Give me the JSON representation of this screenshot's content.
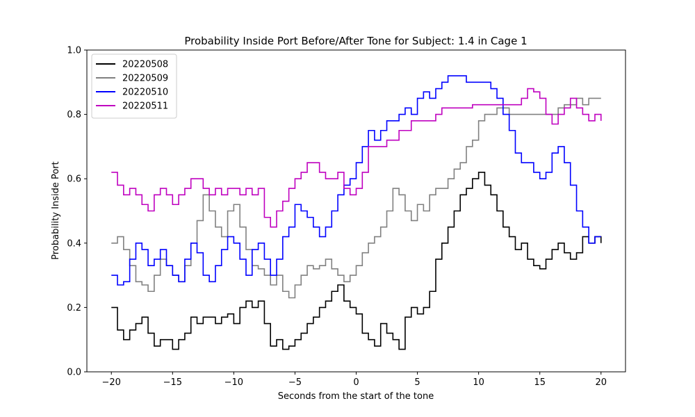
{
  "chart_data": {
    "type": "line",
    "title": "Probability Inside Port Before/After Tone for Subject: 1.4 in Cage 1",
    "xlabel": "Seconds from the start of the tone",
    "ylabel": "Probability Inside Port",
    "xlim": [
      -22,
      22
    ],
    "ylim": [
      0.0,
      1.0
    ],
    "xticks": [
      -20,
      -15,
      -10,
      -5,
      0,
      5,
      10,
      15,
      20
    ],
    "xtick_labels": [
      "−20",
      "−15",
      "−10",
      "−5",
      "0",
      "5",
      "10",
      "15",
      "20"
    ],
    "yticks": [
      0.0,
      0.2,
      0.4,
      0.6,
      0.8,
      1.0
    ],
    "ytick_labels": [
      "0.0",
      "0.2",
      "0.4",
      "0.6",
      "0.8",
      "1.0"
    ],
    "grid": false,
    "legend_position": "top-left",
    "series": [
      {
        "name": "20220508",
        "color": "#000000",
        "x": [
          -20,
          -19.5,
          -19,
          -18.5,
          -18,
          -17.5,
          -17,
          -16.5,
          -16,
          -15.5,
          -15,
          -14.5,
          -14,
          -13.5,
          -13,
          -12.5,
          -12,
          -11.5,
          -11,
          -10.5,
          -10,
          -9.5,
          -9,
          -8.5,
          -8,
          -7.5,
          -7,
          -6.5,
          -6,
          -5.5,
          -5,
          -4.5,
          -4,
          -3.5,
          -3,
          -2.5,
          -2,
          -1.5,
          -1,
          -0.5,
          0,
          0.5,
          1,
          1.5,
          2,
          2.5,
          3,
          3.5,
          4,
          4.5,
          5,
          5.5,
          6,
          6.5,
          7,
          7.5,
          8,
          8.5,
          9,
          9.5,
          10,
          10.5,
          11,
          11.5,
          12,
          12.5,
          13,
          13.5,
          14,
          14.5,
          15,
          15.5,
          16,
          16.5,
          17,
          17.5,
          18,
          18.5,
          19,
          19.5,
          20
        ],
        "values": [
          0.2,
          0.13,
          0.1,
          0.13,
          0.15,
          0.17,
          0.12,
          0.08,
          0.1,
          0.1,
          0.07,
          0.1,
          0.12,
          0.17,
          0.15,
          0.17,
          0.17,
          0.15,
          0.17,
          0.18,
          0.15,
          0.2,
          0.22,
          0.2,
          0.22,
          0.15,
          0.08,
          0.1,
          0.07,
          0.08,
          0.1,
          0.12,
          0.15,
          0.17,
          0.2,
          0.22,
          0.25,
          0.27,
          0.22,
          0.2,
          0.18,
          0.12,
          0.1,
          0.08,
          0.15,
          0.12,
          0.1,
          0.07,
          0.17,
          0.2,
          0.18,
          0.2,
          0.25,
          0.35,
          0.4,
          0.45,
          0.5,
          0.55,
          0.57,
          0.6,
          0.62,
          0.58,
          0.55,
          0.5,
          0.45,
          0.42,
          0.38,
          0.4,
          0.35,
          0.33,
          0.32,
          0.35,
          0.38,
          0.4,
          0.37,
          0.35,
          0.37,
          0.42,
          0.4,
          0.42,
          0.4
        ]
      },
      {
        "name": "20220509",
        "color": "#808080",
        "x": [
          -20,
          -19.5,
          -19,
          -18.5,
          -18,
          -17.5,
          -17,
          -16.5,
          -16,
          -15.5,
          -15,
          -14.5,
          -14,
          -13.5,
          -13,
          -12.5,
          -12,
          -11.5,
          -11,
          -10.5,
          -10,
          -9.5,
          -9,
          -8.5,
          -8,
          -7.5,
          -7,
          -6.5,
          -6,
          -5.5,
          -5,
          -4.5,
          -4,
          -3.5,
          -3,
          -2.5,
          -2,
          -1.5,
          -1,
          -0.5,
          0,
          0.5,
          1,
          1.5,
          2,
          2.5,
          3,
          3.5,
          4,
          4.5,
          5,
          5.5,
          6,
          6.5,
          7,
          7.5,
          8,
          8.5,
          9,
          9.5,
          10,
          10.5,
          11,
          11.5,
          12,
          12.5,
          13,
          13.5,
          14,
          14.5,
          15,
          15.5,
          16,
          16.5,
          17,
          17.5,
          18,
          18.5,
          19,
          19.5,
          20
        ],
        "values": [
          0.4,
          0.42,
          0.38,
          0.33,
          0.28,
          0.27,
          0.25,
          0.3,
          0.35,
          0.33,
          0.3,
          0.28,
          0.33,
          0.4,
          0.47,
          0.55,
          0.5,
          0.45,
          0.42,
          0.5,
          0.52,
          0.45,
          0.38,
          0.33,
          0.32,
          0.3,
          0.27,
          0.3,
          0.25,
          0.23,
          0.27,
          0.3,
          0.33,
          0.32,
          0.33,
          0.35,
          0.32,
          0.3,
          0.28,
          0.3,
          0.33,
          0.37,
          0.4,
          0.42,
          0.45,
          0.5,
          0.57,
          0.55,
          0.5,
          0.47,
          0.52,
          0.5,
          0.55,
          0.57,
          0.57,
          0.6,
          0.63,
          0.65,
          0.7,
          0.72,
          0.78,
          0.8,
          0.8,
          0.82,
          0.82,
          0.8,
          0.8,
          0.8,
          0.8,
          0.8,
          0.8,
          0.8,
          0.8,
          0.82,
          0.83,
          0.83,
          0.85,
          0.83,
          0.85,
          0.85,
          0.85
        ]
      },
      {
        "name": "20220510",
        "color": "#0000ff",
        "x": [
          -20,
          -19.5,
          -19,
          -18.5,
          -18,
          -17.5,
          -17,
          -16.5,
          -16,
          -15.5,
          -15,
          -14.5,
          -14,
          -13.5,
          -13,
          -12.5,
          -12,
          -11.5,
          -11,
          -10.5,
          -10,
          -9.5,
          -9,
          -8.5,
          -8,
          -7.5,
          -7,
          -6.5,
          -6,
          -5.5,
          -5,
          -4.5,
          -4,
          -3.5,
          -3,
          -2.5,
          -2,
          -1.5,
          -1,
          -0.5,
          0,
          0.5,
          1,
          1.5,
          2,
          2.5,
          3,
          3.5,
          4,
          4.5,
          5,
          5.5,
          6,
          6.5,
          7,
          7.5,
          8,
          8.5,
          9,
          9.5,
          10,
          10.5,
          11,
          11.5,
          12,
          12.5,
          13,
          13.5,
          14,
          14.5,
          15,
          15.5,
          16,
          16.5,
          17,
          17.5,
          18,
          18.5,
          19,
          19.5,
          20
        ],
        "values": [
          0.3,
          0.27,
          0.28,
          0.35,
          0.4,
          0.38,
          0.33,
          0.35,
          0.38,
          0.33,
          0.3,
          0.28,
          0.35,
          0.4,
          0.37,
          0.3,
          0.28,
          0.33,
          0.38,
          0.42,
          0.4,
          0.35,
          0.3,
          0.38,
          0.4,
          0.35,
          0.3,
          0.35,
          0.42,
          0.45,
          0.52,
          0.5,
          0.48,
          0.45,
          0.42,
          0.45,
          0.5,
          0.55,
          0.58,
          0.6,
          0.65,
          0.7,
          0.75,
          0.72,
          0.75,
          0.78,
          0.78,
          0.8,
          0.82,
          0.8,
          0.85,
          0.87,
          0.85,
          0.88,
          0.9,
          0.92,
          0.92,
          0.92,
          0.9,
          0.9,
          0.9,
          0.9,
          0.88,
          0.85,
          0.8,
          0.75,
          0.68,
          0.65,
          0.65,
          0.62,
          0.6,
          0.62,
          0.68,
          0.7,
          0.65,
          0.58,
          0.5,
          0.45,
          0.4,
          0.42,
          0.42
        ]
      },
      {
        "name": "20220511",
        "color": "#bf00bf",
        "x": [
          -20,
          -19.5,
          -19,
          -18.5,
          -18,
          -17.5,
          -17,
          -16.5,
          -16,
          -15.5,
          -15,
          -14.5,
          -14,
          -13.5,
          -13,
          -12.5,
          -12,
          -11.5,
          -11,
          -10.5,
          -10,
          -9.5,
          -9,
          -8.5,
          -8,
          -7.5,
          -7,
          -6.5,
          -6,
          -5.5,
          -5,
          -4.5,
          -4,
          -3.5,
          -3,
          -2.5,
          -2,
          -1.5,
          -1,
          -0.5,
          0,
          0.5,
          1,
          1.5,
          2,
          2.5,
          3,
          3.5,
          4,
          4.5,
          5,
          5.5,
          6,
          6.5,
          7,
          7.5,
          8,
          8.5,
          9,
          9.5,
          10,
          10.5,
          11,
          11.5,
          12,
          12.5,
          13,
          13.5,
          14,
          14.5,
          15,
          15.5,
          16,
          16.5,
          17,
          17.5,
          18,
          18.5,
          19,
          19.5,
          20
        ],
        "values": [
          0.62,
          0.58,
          0.55,
          0.57,
          0.55,
          0.52,
          0.5,
          0.55,
          0.57,
          0.55,
          0.52,
          0.55,
          0.57,
          0.6,
          0.6,
          0.57,
          0.55,
          0.57,
          0.55,
          0.57,
          0.57,
          0.55,
          0.57,
          0.55,
          0.57,
          0.48,
          0.45,
          0.5,
          0.53,
          0.57,
          0.6,
          0.62,
          0.65,
          0.65,
          0.62,
          0.6,
          0.6,
          0.62,
          0.57,
          0.55,
          0.57,
          0.62,
          0.7,
          0.7,
          0.7,
          0.72,
          0.72,
          0.75,
          0.75,
          0.78,
          0.78,
          0.78,
          0.78,
          0.8,
          0.82,
          0.82,
          0.82,
          0.82,
          0.82,
          0.83,
          0.83,
          0.83,
          0.83,
          0.83,
          0.83,
          0.83,
          0.83,
          0.85,
          0.88,
          0.87,
          0.85,
          0.8,
          0.77,
          0.8,
          0.82,
          0.85,
          0.82,
          0.8,
          0.78,
          0.8,
          0.78
        ]
      }
    ]
  }
}
